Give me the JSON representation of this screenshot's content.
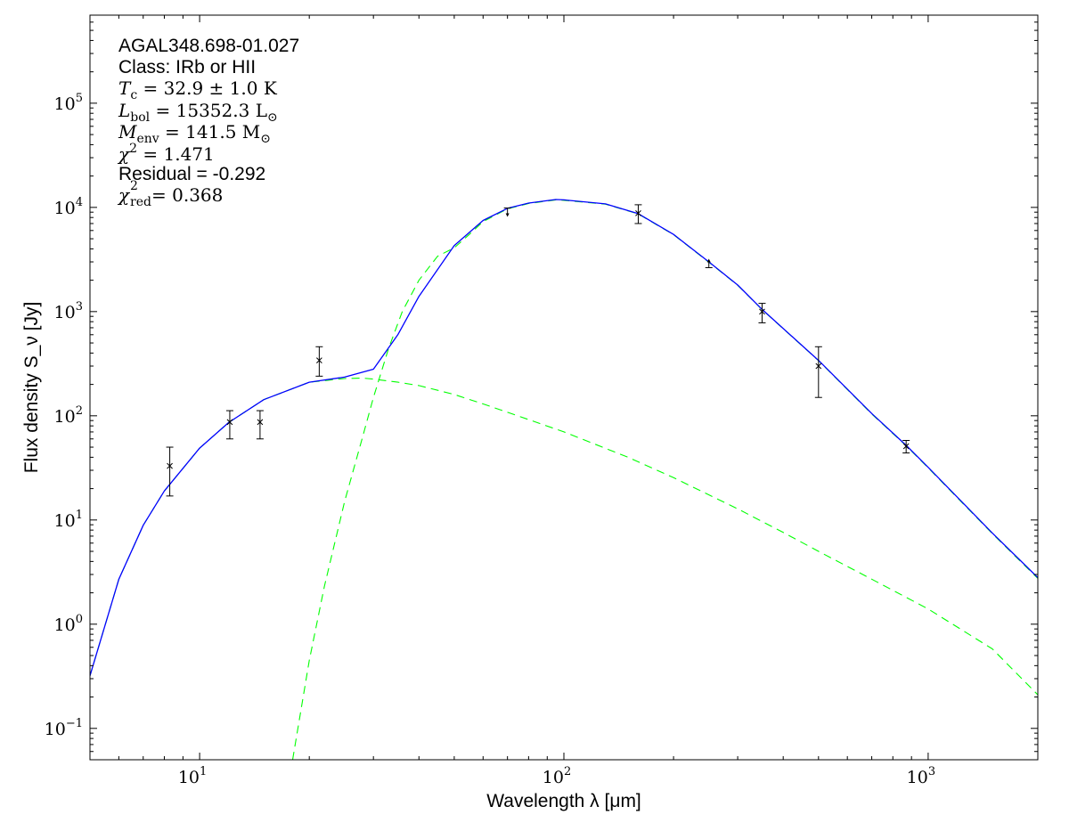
{
  "chart_data": {
    "type": "scatter",
    "xlabel": "Wavelength λ [μm]",
    "ylabel": "Flux density S_ν [Jy]",
    "x_scale": "log",
    "y_scale": "log",
    "xlim": [
      5,
      2000
    ],
    "ylim": [
      0.05,
      700000
    ],
    "grid": false,
    "x_ticks": [
      {
        "base": "10",
        "exp": "1",
        "value": 10
      },
      {
        "base": "10",
        "exp": "2",
        "value": 100
      },
      {
        "base": "10",
        "exp": "3",
        "value": 1000
      }
    ],
    "y_ticks": [
      {
        "base": "10",
        "exp": "−1",
        "value": 0.1
      },
      {
        "base": "10",
        "exp": "0",
        "value": 1
      },
      {
        "base": "10",
        "exp": "1",
        "value": 10
      },
      {
        "base": "10",
        "exp": "2",
        "value": 100
      },
      {
        "base": "10",
        "exp": "3",
        "value": 1000
      },
      {
        "base": "10",
        "exp": "4",
        "value": 10000
      },
      {
        "base": "10",
        "exp": "5",
        "value": 100000
      }
    ],
    "annotations": {
      "source_name": "AGAL348.698-01.027",
      "class_text": "Class: IRb or HII",
      "tc_sym": "T",
      "tc_sub": "c",
      "tc_val": " = 32.9 ± 1.0 K",
      "lbol_sym": "L",
      "lbol_sub": "bol",
      "lbol_val": " = 15352.3 L",
      "lbol_unit_sub": "⊙",
      "menv_sym": "M",
      "menv_sub": "env",
      "menv_val": " = 141.5 M",
      "menv_unit_sub": "⊙",
      "chi2_sym": "χ",
      "chi2_sup": "2",
      "chi2_val": " = 1.471",
      "residual_text": "Residual = -0.292",
      "chired_sym": "χ",
      "chired_sup": "2",
      "chired_sub": "red",
      "chired_val": " = 0.368"
    },
    "points": [
      {
        "x": 8.28,
        "y": 33,
        "yerr_low": 17,
        "yerr_high": 50,
        "marker": "x"
      },
      {
        "x": 12.1,
        "y": 87,
        "yerr_low": 60,
        "yerr_high": 112,
        "marker": "x"
      },
      {
        "x": 14.65,
        "y": 87,
        "yerr_low": 60,
        "yerr_high": 112,
        "marker": "x"
      },
      {
        "x": 21.3,
        "y": 340,
        "yerr_low": 240,
        "yerr_high": 460,
        "marker": "x"
      },
      {
        "x": 70,
        "y": 9300,
        "marker": "upper-limit"
      },
      {
        "x": 160,
        "y": 8800,
        "yerr_low": 7000,
        "yerr_high": 10600,
        "marker": "x"
      },
      {
        "x": 250,
        "y": 2800,
        "marker": "lower-limit"
      },
      {
        "x": 350,
        "y": 1000,
        "yerr_low": 780,
        "yerr_high": 1200,
        "marker": "x"
      },
      {
        "x": 500,
        "y": 300,
        "yerr_low": 150,
        "yerr_high": 460,
        "marker": "x"
      },
      {
        "x": 870,
        "y": 51,
        "yerr_low": 44,
        "yerr_high": 58,
        "marker": "x"
      }
    ],
    "series": [
      {
        "style": "solid",
        "color": "#0000ff",
        "x": [
          5,
          6,
          7,
          8,
          10,
          12,
          15,
          20,
          25,
          30,
          35,
          40,
          50,
          60,
          70,
          80,
          95,
          100,
          130,
          160,
          200,
          250,
          300,
          350,
          500,
          700,
          870,
          1000,
          1500,
          2000
        ],
        "y": [
          0.32,
          2.7,
          8.9,
          19,
          49,
          86,
          143,
          210,
          235,
          280,
          600,
          1400,
          4300,
          7500,
          9800,
          11000,
          11900,
          11800,
          10800,
          8700,
          5500,
          3000,
          1800,
          1050,
          340,
          105,
          52,
          32,
          7.5,
          2.8
        ]
      },
      {
        "style": "dashed",
        "color": "#00ff00",
        "x": [
          5,
          6,
          7,
          8,
          10,
          12,
          15,
          20,
          25,
          28,
          30,
          35,
          40,
          50,
          60,
          70,
          80,
          100,
          150,
          200,
          300,
          400,
          500,
          700,
          1000,
          1500,
          2000
        ],
        "y": [
          0.32,
          2.7,
          8.9,
          19,
          49,
          86,
          143,
          210,
          228,
          230,
          225,
          210,
          195,
          160,
          130,
          108,
          92,
          70,
          40,
          25.5,
          12.8,
          7.6,
          5.0,
          2.7,
          1.4,
          0.58,
          0.21
        ]
      },
      {
        "style": "dashed",
        "color": "#00ff00",
        "x": [
          18,
          20,
          22,
          25,
          28,
          30,
          33,
          36,
          40,
          45,
          50,
          55,
          60,
          70,
          80,
          95,
          100,
          130,
          160,
          200,
          250,
          300,
          350,
          500,
          700,
          870,
          1000,
          1500,
          2000
        ],
        "y": [
          0.05,
          0.45,
          2.3,
          15,
          62,
          150,
          440,
          1000,
          2000,
          3400,
          4100,
          5500,
          7300,
          9700,
          10900,
          11800,
          11700,
          10750,
          8650,
          5470,
          2980,
          1790,
          1045,
          338,
          104,
          51.5,
          31.7,
          7.4,
          2.75
        ]
      }
    ]
  }
}
